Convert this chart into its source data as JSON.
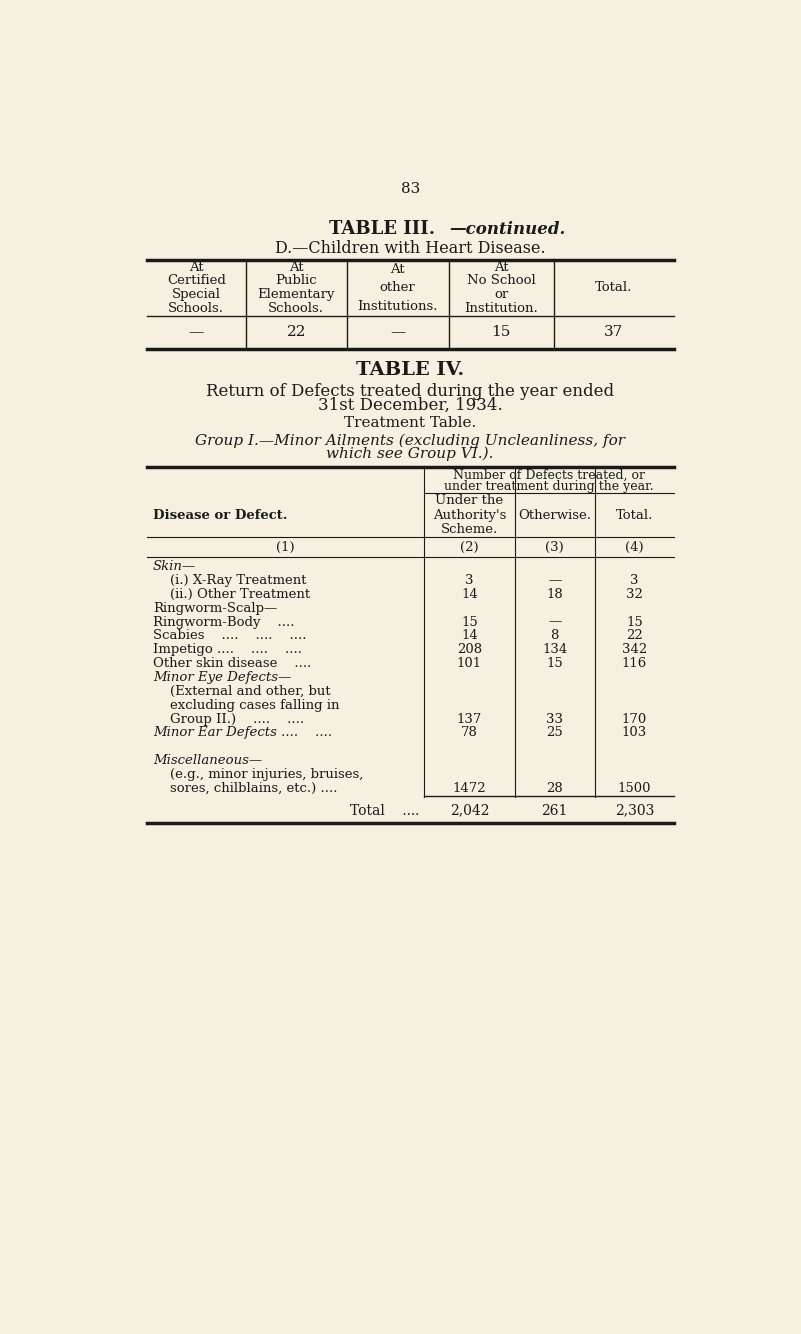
{
  "bg_color": "#f5f0e0",
  "text_color": "#1a1a1a",
  "page_number": "83",
  "table3_title_plain": "TABLE III.",
  "table3_title_italic": "—continued.",
  "table3_subtitle": "D.—Children with Heart Disease.",
  "table3_headers": [
    "At\nCertified\nSpecial\nSchools.",
    "At\nPublic\nElementary\nSchools.",
    "At\nother\nInstitutions.",
    "At\nNo School\nor\nInstitution.",
    "Total."
  ],
  "table3_data": [
    "—",
    "22",
    "—",
    "15",
    "37"
  ],
  "table4_title": "TABLE IV.",
  "table4_subtitle1": "Return of Defects treated during the year ended",
  "table4_subtitle2": "31st December, 1934.",
  "table4_subtitle3": "Treatment Table.",
  "table4_subtitle4": "Group I.—Minor Ailments (excluding Uncleanliness, for",
  "table4_subtitle5": "which see Group VI.).",
  "table4_span_line1": "Number of Defects treated, or",
  "table4_span_line2": "under treatment during the year.",
  "table4_col_headers": [
    "Disease or Defect.",
    "Under the\nAuthority's\nScheme.",
    "Otherwise.",
    "Total."
  ],
  "table4_col_numbers": [
    "(1)",
    "(2)",
    "(3)",
    "(4)"
  ],
  "table4_rows": [
    {
      "label": "Skin—",
      "label_style": "italic",
      "multiline": false,
      "col2": "",
      "col3": "",
      "col4": ""
    },
    {
      "label": "    (i.) X-Ray Treatment",
      "label_style": "normal",
      "multiline": false,
      "col2": "3",
      "col3": "—",
      "col4": "3"
    },
    {
      "label": "    (ii.) Other Treatment",
      "label_style": "normal",
      "multiline": false,
      "col2": "14",
      "col3": "18",
      "col4": "32"
    },
    {
      "label": "Ringworm-Scalp—",
      "label_style": "normal",
      "multiline": false,
      "col2": "",
      "col3": "",
      "col4": ""
    },
    {
      "label": "Ringworm-Body    ....",
      "label_style": "normal",
      "multiline": false,
      "col2": "15",
      "col3": "—",
      "col4": "15"
    },
    {
      "label": "Scabies    ....    ....    ....",
      "label_style": "normal",
      "multiline": false,
      "col2": "14",
      "col3": "8",
      "col4": "22"
    },
    {
      "label": "Impetigo ....    ....    ....",
      "label_style": "normal",
      "multiline": false,
      "col2": "208",
      "col3": "134",
      "col4": "342"
    },
    {
      "label": "Other skin disease    ....",
      "label_style": "normal",
      "multiline": false,
      "col2": "101",
      "col3": "15",
      "col4": "116"
    },
    {
      "label": "Minor Eye Defects—",
      "label_style": "italic",
      "multiline": false,
      "col2": "",
      "col3": "",
      "col4": ""
    },
    {
      "label": "    (External and other, but",
      "label_style": "normal",
      "multiline": false,
      "col2": "",
      "col3": "",
      "col4": ""
    },
    {
      "label": "    excluding cases falling in",
      "label_style": "normal",
      "multiline": false,
      "col2": "",
      "col3": "",
      "col4": ""
    },
    {
      "label": "    Group II.)    ....    ....",
      "label_style": "normal",
      "multiline": false,
      "col2": "137",
      "col3": "33",
      "col4": "170"
    },
    {
      "label": "Minor Ear Defects ....    ....",
      "label_style": "italic",
      "multiline": false,
      "col2": "78",
      "col3": "25",
      "col4": "103"
    },
    {
      "label": "",
      "label_style": "normal",
      "multiline": false,
      "col2": "",
      "col3": "",
      "col4": ""
    },
    {
      "label": "Miscellaneous—",
      "label_style": "italic",
      "multiline": false,
      "col2": "",
      "col3": "",
      "col4": ""
    },
    {
      "label": "    (e.g., minor injuries, bruises,",
      "label_style": "normal",
      "multiline": false,
      "col2": "",
      "col3": "",
      "col4": ""
    },
    {
      "label": "    sores, chilblains, etc.) ....",
      "label_style": "normal",
      "multiline": false,
      "col2": "1472",
      "col3": "28",
      "col4": "1500"
    }
  ],
  "table4_total_label_plain": "Total",
  "table4_total_label_dots": "    ....",
  "table4_total_col2": "2,042",
  "table4_total_col3": "261",
  "table4_total_col4": "2,303"
}
